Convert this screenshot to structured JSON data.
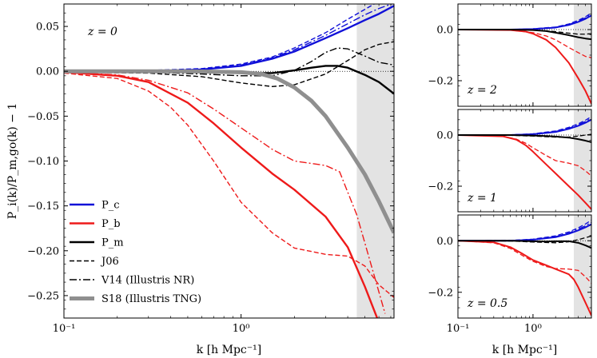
{
  "chart_data": [
    {
      "type": "line",
      "panel": "main",
      "annotation": "z = 0",
      "xlabel": "k [h Mpc⁻¹]",
      "ylabel": "P_i(k)/P_m,go(k) − 1",
      "xscale": "log",
      "xlim": [
        0.1,
        7.3
      ],
      "ylim": [
        -0.275,
        0.075
      ],
      "xticks": [
        0.1,
        1
      ],
      "xtick_labels": [
        "10⁻¹",
        "10⁰"
      ],
      "yticks": [
        -0.25,
        -0.2,
        -0.15,
        -0.1,
        -0.05,
        0.0,
        0.05
      ],
      "ytick_labels": [
        "−0.25",
        "−0.20",
        "−0.15",
        "−0.10",
        "−0.05",
        "0.00",
        "0.05"
      ],
      "shaded_xrange": [
        4.5,
        7.3
      ],
      "zero_line": true,
      "legend": {
        "position": "lower-left",
        "entries": [
          {
            "label": "P_c",
            "color": "#1010d8",
            "style": "solid",
            "width": 2.4
          },
          {
            "label": "P_b",
            "color": "#ee1a1a",
            "style": "solid",
            "width": 2.4
          },
          {
            "label": "P_m",
            "color": "#000000",
            "style": "solid",
            "width": 2.4
          },
          {
            "label": "J06",
            "color": "#000000",
            "style": "dashed",
            "width": 1.4
          },
          {
            "label": "V14 (Illustris NR)",
            "color": "#000000",
            "style": "dashdot",
            "width": 1.4
          },
          {
            "label": "S18 (Illustris TNG)",
            "color": "#8f8f8f",
            "style": "solid",
            "width": 5
          }
        ]
      },
      "series": [
        {
          "name": "",
          "color": "#1010d8",
          "style": "solid",
          "width": 2.4,
          "x": [
            0.1,
            0.3,
            0.6,
            1.0,
            1.5,
            2.0,
            3.0,
            4.0,
            5.0,
            6.0,
            7.3
          ],
          "y": [
            0.0,
            0.0,
            0.002,
            0.006,
            0.014,
            0.022,
            0.037,
            0.048,
            0.057,
            0.064,
            0.073
          ]
        },
        {
          "name": "",
          "color": "#1010d8",
          "style": "dashed",
          "width": 1.4,
          "x": [
            0.1,
            0.3,
            0.6,
            1.0,
            1.5,
            2.0,
            3.0,
            4.0,
            5.0,
            6.0
          ],
          "y": [
            0.0,
            0.001,
            0.003,
            0.008,
            0.016,
            0.026,
            0.043,
            0.058,
            0.069,
            0.078
          ]
        },
        {
          "name": "",
          "color": "#1010d8",
          "style": "dashdot",
          "width": 1.4,
          "x": [
            0.1,
            0.3,
            0.6,
            1.0,
            1.5,
            2.0,
            3.0,
            4.0,
            5.0,
            6.0,
            7.3
          ],
          "y": [
            0.0,
            0.0,
            0.002,
            0.007,
            0.015,
            0.024,
            0.04,
            0.053,
            0.063,
            0.07,
            0.076
          ]
        },
        {
          "name": "",
          "color": "#ee1a1a",
          "style": "solid",
          "width": 2.4,
          "x": [
            0.1,
            0.2,
            0.3,
            0.5,
            0.7,
            1.0,
            1.5,
            2.0,
            3.0,
            4.0,
            5.0,
            6.0
          ],
          "y": [
            -0.001,
            -0.005,
            -0.012,
            -0.035,
            -0.058,
            -0.085,
            -0.114,
            -0.132,
            -0.162,
            -0.196,
            -0.24,
            -0.28
          ]
        },
        {
          "name": "",
          "color": "#ee1a1a",
          "style": "dashed",
          "width": 1.4,
          "x": [
            0.1,
            0.2,
            0.3,
            0.4,
            0.5,
            0.7,
            1.0,
            1.5,
            2.0,
            3.0,
            4.0,
            5.0,
            6.0,
            7.3
          ],
          "y": [
            -0.002,
            -0.008,
            -0.022,
            -0.04,
            -0.06,
            -0.1,
            -0.146,
            -0.18,
            -0.197,
            -0.204,
            -0.206,
            -0.217,
            -0.238,
            -0.252
          ]
        },
        {
          "name": "",
          "color": "#ee1a1a",
          "style": "dashdot",
          "width": 1.4,
          "x": [
            0.1,
            0.2,
            0.3,
            0.5,
            0.7,
            1.0,
            1.5,
            2.0,
            3.0,
            3.6,
            4.5,
            5.5,
            6.5
          ],
          "y": [
            -0.001,
            -0.004,
            -0.01,
            -0.024,
            -0.042,
            -0.063,
            -0.087,
            -0.1,
            -0.105,
            -0.112,
            -0.16,
            -0.22,
            -0.27
          ]
        },
        {
          "name": "",
          "color": "#000000",
          "style": "solid",
          "width": 2.4,
          "x": [
            0.1,
            0.3,
            0.6,
            1.0,
            1.5,
            2.0,
            2.5,
            3.0,
            3.5,
            4.0,
            5.0,
            6.0,
            7.3
          ],
          "y": [
            0.0,
            0.0,
            -0.001,
            -0.002,
            -0.002,
            0.001,
            0.004,
            0.006,
            0.006,
            0.004,
            -0.004,
            -0.012,
            -0.025
          ]
        },
        {
          "name": "",
          "color": "#000000",
          "style": "dashed",
          "width": 1.4,
          "x": [
            0.1,
            0.3,
            0.6,
            1.0,
            1.5,
            2.0,
            3.0,
            4.0,
            5.0,
            6.0,
            7.3
          ],
          "y": [
            -0.001,
            -0.002,
            -0.006,
            -0.013,
            -0.017,
            -0.015,
            -0.003,
            0.012,
            0.024,
            0.03,
            0.033
          ]
        },
        {
          "name": "",
          "color": "#000000",
          "style": "dashdot",
          "width": 1.4,
          "x": [
            0.1,
            0.3,
            0.6,
            1.0,
            1.5,
            2.0,
            2.5,
            3.0,
            3.5,
            4.0,
            5.0,
            6.0,
            7.3
          ],
          "y": [
            0.0,
            -0.001,
            -0.003,
            -0.005,
            -0.005,
            0.001,
            0.011,
            0.021,
            0.026,
            0.025,
            0.017,
            0.01,
            0.007
          ]
        },
        {
          "name": "",
          "color": "#8f8f8f",
          "style": "solid",
          "width": 5,
          "x": [
            0.1,
            0.5,
            1.0,
            1.3,
            1.6,
            2.0,
            2.5,
            3.0,
            4.0,
            5.0,
            6.0,
            7.3
          ],
          "y": [
            0.0,
            0.0,
            -0.001,
            -0.003,
            -0.008,
            -0.018,
            -0.033,
            -0.05,
            -0.085,
            -0.115,
            -0.145,
            -0.18
          ]
        }
      ]
    },
    {
      "type": "line",
      "panel": "z2",
      "annotation": "z = 2",
      "xscale": "log",
      "xlim": [
        0.1,
        6
      ],
      "ylim": [
        -0.3,
        0.1
      ],
      "yticks": [
        -0.2,
        0.0
      ],
      "ytick_labels": [
        "−0.2",
        "0.0"
      ],
      "shaded_xrange": [
        3.5,
        6
      ],
      "series": [
        {
          "name": "",
          "color": "#1010d8",
          "style": "solid",
          "width": 2,
          "x": [
            0.1,
            0.5,
            1.0,
            2.0,
            3.0,
            4.0,
            5.0,
            6.0
          ],
          "y": [
            0.0,
            0.0,
            0.002,
            0.008,
            0.018,
            0.03,
            0.042,
            0.055
          ]
        },
        {
          "name": "",
          "color": "#1010d8",
          "style": "dashed",
          "width": 1.3,
          "x": [
            0.1,
            0.5,
            1.0,
            2.0,
            3.0,
            4.0,
            5.0,
            6.0
          ],
          "y": [
            0.0,
            0.0,
            0.003,
            0.01,
            0.022,
            0.036,
            0.05,
            0.065
          ]
        },
        {
          "name": "",
          "color": "#1010d8",
          "style": "dashdot",
          "width": 1.3,
          "x": [
            0.1,
            0.5,
            1.0,
            2.0,
            3.0,
            4.0,
            5.0,
            6.0
          ],
          "y": [
            0.0,
            0.0,
            0.002,
            0.009,
            0.02,
            0.033,
            0.046,
            0.06
          ]
        },
        {
          "name": "",
          "color": "#ee1a1a",
          "style": "solid",
          "width": 2,
          "x": [
            0.1,
            0.5,
            0.8,
            1.0,
            1.5,
            2.0,
            3.0,
            4.0,
            5.0,
            6.0
          ],
          "y": [
            0.0,
            -0.002,
            -0.008,
            -0.016,
            -0.04,
            -0.07,
            -0.13,
            -0.19,
            -0.24,
            -0.29
          ]
        },
        {
          "name": "",
          "color": "#ee1a1a",
          "style": "dashed",
          "width": 1.3,
          "x": [
            0.1,
            0.5,
            1.0,
            1.5,
            2.0,
            3.0,
            4.0,
            5.0,
            6.0
          ],
          "y": [
            0.0,
            -0.002,
            -0.012,
            -0.025,
            -0.04,
            -0.07,
            -0.09,
            -0.105,
            -0.11
          ]
        },
        {
          "name": "",
          "color": "#000000",
          "style": "solid",
          "width": 2,
          "x": [
            0.1,
            0.5,
            1.0,
            1.5,
            2.0,
            3.0,
            4.0,
            5.0,
            6.0
          ],
          "y": [
            0.0,
            0.0,
            -0.002,
            -0.006,
            -0.012,
            -0.022,
            -0.03,
            -0.035,
            -0.038
          ]
        },
        {
          "name": "",
          "color": "#000000",
          "style": "dashed",
          "width": 1.3,
          "x": [
            0.1,
            0.5,
            1.0,
            2.0,
            3.0,
            4.0,
            5.0,
            6.0
          ],
          "y": [
            0.0,
            0.0,
            -0.002,
            -0.008,
            -0.014,
            -0.018,
            -0.018,
            -0.016
          ]
        }
      ]
    },
    {
      "type": "line",
      "panel": "z1",
      "annotation": "z = 1",
      "xscale": "log",
      "xlim": [
        0.1,
        6
      ],
      "ylim": [
        -0.3,
        0.1
      ],
      "yticks": [
        -0.2,
        0.0
      ],
      "ytick_labels": [
        "−0.2",
        "0.0"
      ],
      "shaded_xrange": [
        3.5,
        6
      ],
      "series": [
        {
          "name": "",
          "color": "#1010d8",
          "style": "solid",
          "width": 2,
          "x": [
            0.1,
            0.5,
            1.0,
            2.0,
            3.0,
            4.0,
            5.0,
            6.0
          ],
          "y": [
            0.0,
            0.0,
            0.003,
            0.012,
            0.024,
            0.036,
            0.048,
            0.06
          ]
        },
        {
          "name": "",
          "color": "#1010d8",
          "style": "dashed",
          "width": 1.3,
          "x": [
            0.1,
            0.5,
            1.0,
            2.0,
            3.0,
            4.0,
            5.0,
            6.0
          ],
          "y": [
            0.0,
            0.001,
            0.005,
            0.016,
            0.03,
            0.044,
            0.058,
            0.072
          ]
        },
        {
          "name": "",
          "color": "#1010d8",
          "style": "dashdot",
          "width": 1.3,
          "x": [
            0.1,
            0.5,
            1.0,
            2.0,
            3.0,
            4.0,
            5.0,
            6.0
          ],
          "y": [
            0.0,
            0.001,
            0.004,
            0.014,
            0.027,
            0.04,
            0.053,
            0.066
          ]
        },
        {
          "name": "",
          "color": "#ee1a1a",
          "style": "solid",
          "width": 2,
          "x": [
            0.1,
            0.4,
            0.6,
            0.8,
            1.0,
            1.5,
            2.0,
            3.0,
            4.0,
            5.0,
            6.0
          ],
          "y": [
            0.0,
            -0.005,
            -0.018,
            -0.04,
            -0.065,
            -0.115,
            -0.15,
            -0.2,
            -0.235,
            -0.265,
            -0.29
          ]
        },
        {
          "name": "",
          "color": "#ee1a1a",
          "style": "dashed",
          "width": 1.3,
          "x": [
            0.1,
            0.4,
            0.6,
            0.8,
            1.0,
            1.5,
            2.0,
            3.0,
            4.0,
            5.0,
            6.0
          ],
          "y": [
            0.0,
            -0.005,
            -0.016,
            -0.032,
            -0.05,
            -0.08,
            -0.1,
            -0.11,
            -0.12,
            -0.14,
            -0.16
          ]
        },
        {
          "name": "",
          "color": "#000000",
          "style": "solid",
          "width": 2,
          "x": [
            0.1,
            0.5,
            1.0,
            1.5,
            2.0,
            3.0,
            4.0,
            5.0,
            6.0
          ],
          "y": [
            0.0,
            0.0,
            -0.002,
            -0.004,
            -0.006,
            -0.01,
            -0.016,
            -0.022,
            -0.028
          ]
        },
        {
          "name": "",
          "color": "#000000",
          "style": "dashed",
          "width": 1.3,
          "x": [
            0.1,
            0.5,
            1.0,
            2.0,
            3.0,
            4.0,
            5.0,
            6.0
          ],
          "y": [
            0.0,
            -0.001,
            -0.004,
            -0.008,
            -0.008,
            -0.004,
            0.0,
            0.003
          ]
        }
      ]
    },
    {
      "type": "line",
      "panel": "z05",
      "annotation": "z = 0.5",
      "xlabel": "k [h Mpc⁻¹]",
      "xscale": "log",
      "xlim": [
        0.1,
        6
      ],
      "ylim": [
        -0.3,
        0.1
      ],
      "xticks": [
        0.1,
        1
      ],
      "xtick_labels": [
        "10⁻¹",
        "10⁰"
      ],
      "yticks": [
        -0.2,
        0.0
      ],
      "ytick_labels": [
        "−0.2",
        "0.0"
      ],
      "shaded_xrange": [
        3.5,
        6
      ],
      "series": [
        {
          "name": "",
          "color": "#1010d8",
          "style": "solid",
          "width": 2,
          "x": [
            0.1,
            0.5,
            1.0,
            2.0,
            3.0,
            4.0,
            5.0,
            6.0
          ],
          "y": [
            0.0,
            0.0,
            0.004,
            0.014,
            0.027,
            0.04,
            0.052,
            0.064
          ]
        },
        {
          "name": "",
          "color": "#1010d8",
          "style": "dashed",
          "width": 1.3,
          "x": [
            0.1,
            0.5,
            1.0,
            2.0,
            3.0,
            4.0,
            5.0,
            6.0
          ],
          "y": [
            0.0,
            0.001,
            0.006,
            0.019,
            0.034,
            0.05,
            0.065,
            0.08
          ]
        },
        {
          "name": "",
          "color": "#1010d8",
          "style": "dashdot",
          "width": 1.3,
          "x": [
            0.1,
            0.5,
            1.0,
            2.0,
            3.0,
            4.0,
            5.0,
            6.0
          ],
          "y": [
            0.0,
            0.001,
            0.005,
            0.016,
            0.03,
            0.045,
            0.058,
            0.072
          ]
        },
        {
          "name": "",
          "color": "#ee1a1a",
          "style": "solid",
          "width": 2,
          "x": [
            0.1,
            0.3,
            0.5,
            0.7,
            1.0,
            1.5,
            2.0,
            3.0,
            3.5,
            4.0,
            5.0,
            6.0
          ],
          "y": [
            0.0,
            -0.006,
            -0.025,
            -0.048,
            -0.075,
            -0.095,
            -0.11,
            -0.13,
            -0.15,
            -0.18,
            -0.24,
            -0.29
          ]
        },
        {
          "name": "",
          "color": "#ee1a1a",
          "style": "dashed",
          "width": 1.3,
          "x": [
            0.1,
            0.3,
            0.5,
            0.7,
            1.0,
            1.5,
            2.0,
            3.0,
            4.0,
            5.0,
            6.0
          ],
          "y": [
            0.0,
            -0.008,
            -0.03,
            -0.055,
            -0.08,
            -0.1,
            -0.108,
            -0.11,
            -0.115,
            -0.14,
            -0.165
          ]
        },
        {
          "name": "",
          "color": "#000000",
          "style": "solid",
          "width": 2,
          "x": [
            0.1,
            0.5,
            1.0,
            1.5,
            2.0,
            3.0,
            4.0,
            5.0,
            6.0
          ],
          "y": [
            0.0,
            0.0,
            -0.002,
            -0.003,
            -0.002,
            -0.002,
            -0.008,
            -0.018,
            -0.028
          ]
        },
        {
          "name": "",
          "color": "#000000",
          "style": "dashed",
          "width": 1.3,
          "x": [
            0.1,
            0.5,
            1.0,
            2.0,
            3.0,
            4.0,
            5.0,
            6.0
          ],
          "y": [
            0.0,
            -0.001,
            -0.005,
            -0.008,
            -0.004,
            0.004,
            0.012,
            0.018
          ]
        }
      ]
    }
  ]
}
